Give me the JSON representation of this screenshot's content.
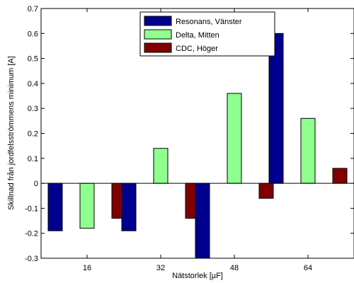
{
  "chart_data": {
    "type": "bar",
    "title": "",
    "xlabel": "Nätstorlek [µF]",
    "ylabel": "Skillnad från jordfelsströmmens minimum [A]",
    "categories": [
      "16",
      "32",
      "48",
      "64"
    ],
    "series": [
      {
        "name": "Resonans, Vänster",
        "color": "#00008f",
        "values": [
          -0.19,
          -0.19,
          -0.3,
          0.6
        ]
      },
      {
        "name": "Delta, Mitten",
        "color": "#8fff8f",
        "values": [
          -0.18,
          0.14,
          0.36,
          0.26
        ]
      },
      {
        "name": "CDC, Höger",
        "color": "#800000",
        "values": [
          -0.14,
          -0.14,
          -0.06,
          0.06
        ]
      }
    ],
    "ylim": [
      -0.3,
      0.7
    ],
    "yticks": [
      "-0.3",
      "-0.2",
      "-0.1",
      "0",
      "0.1",
      "0.2",
      "0.3",
      "0.4",
      "0.5",
      "0.6",
      "0.7"
    ],
    "grid": false,
    "legend_position": "top-center"
  }
}
